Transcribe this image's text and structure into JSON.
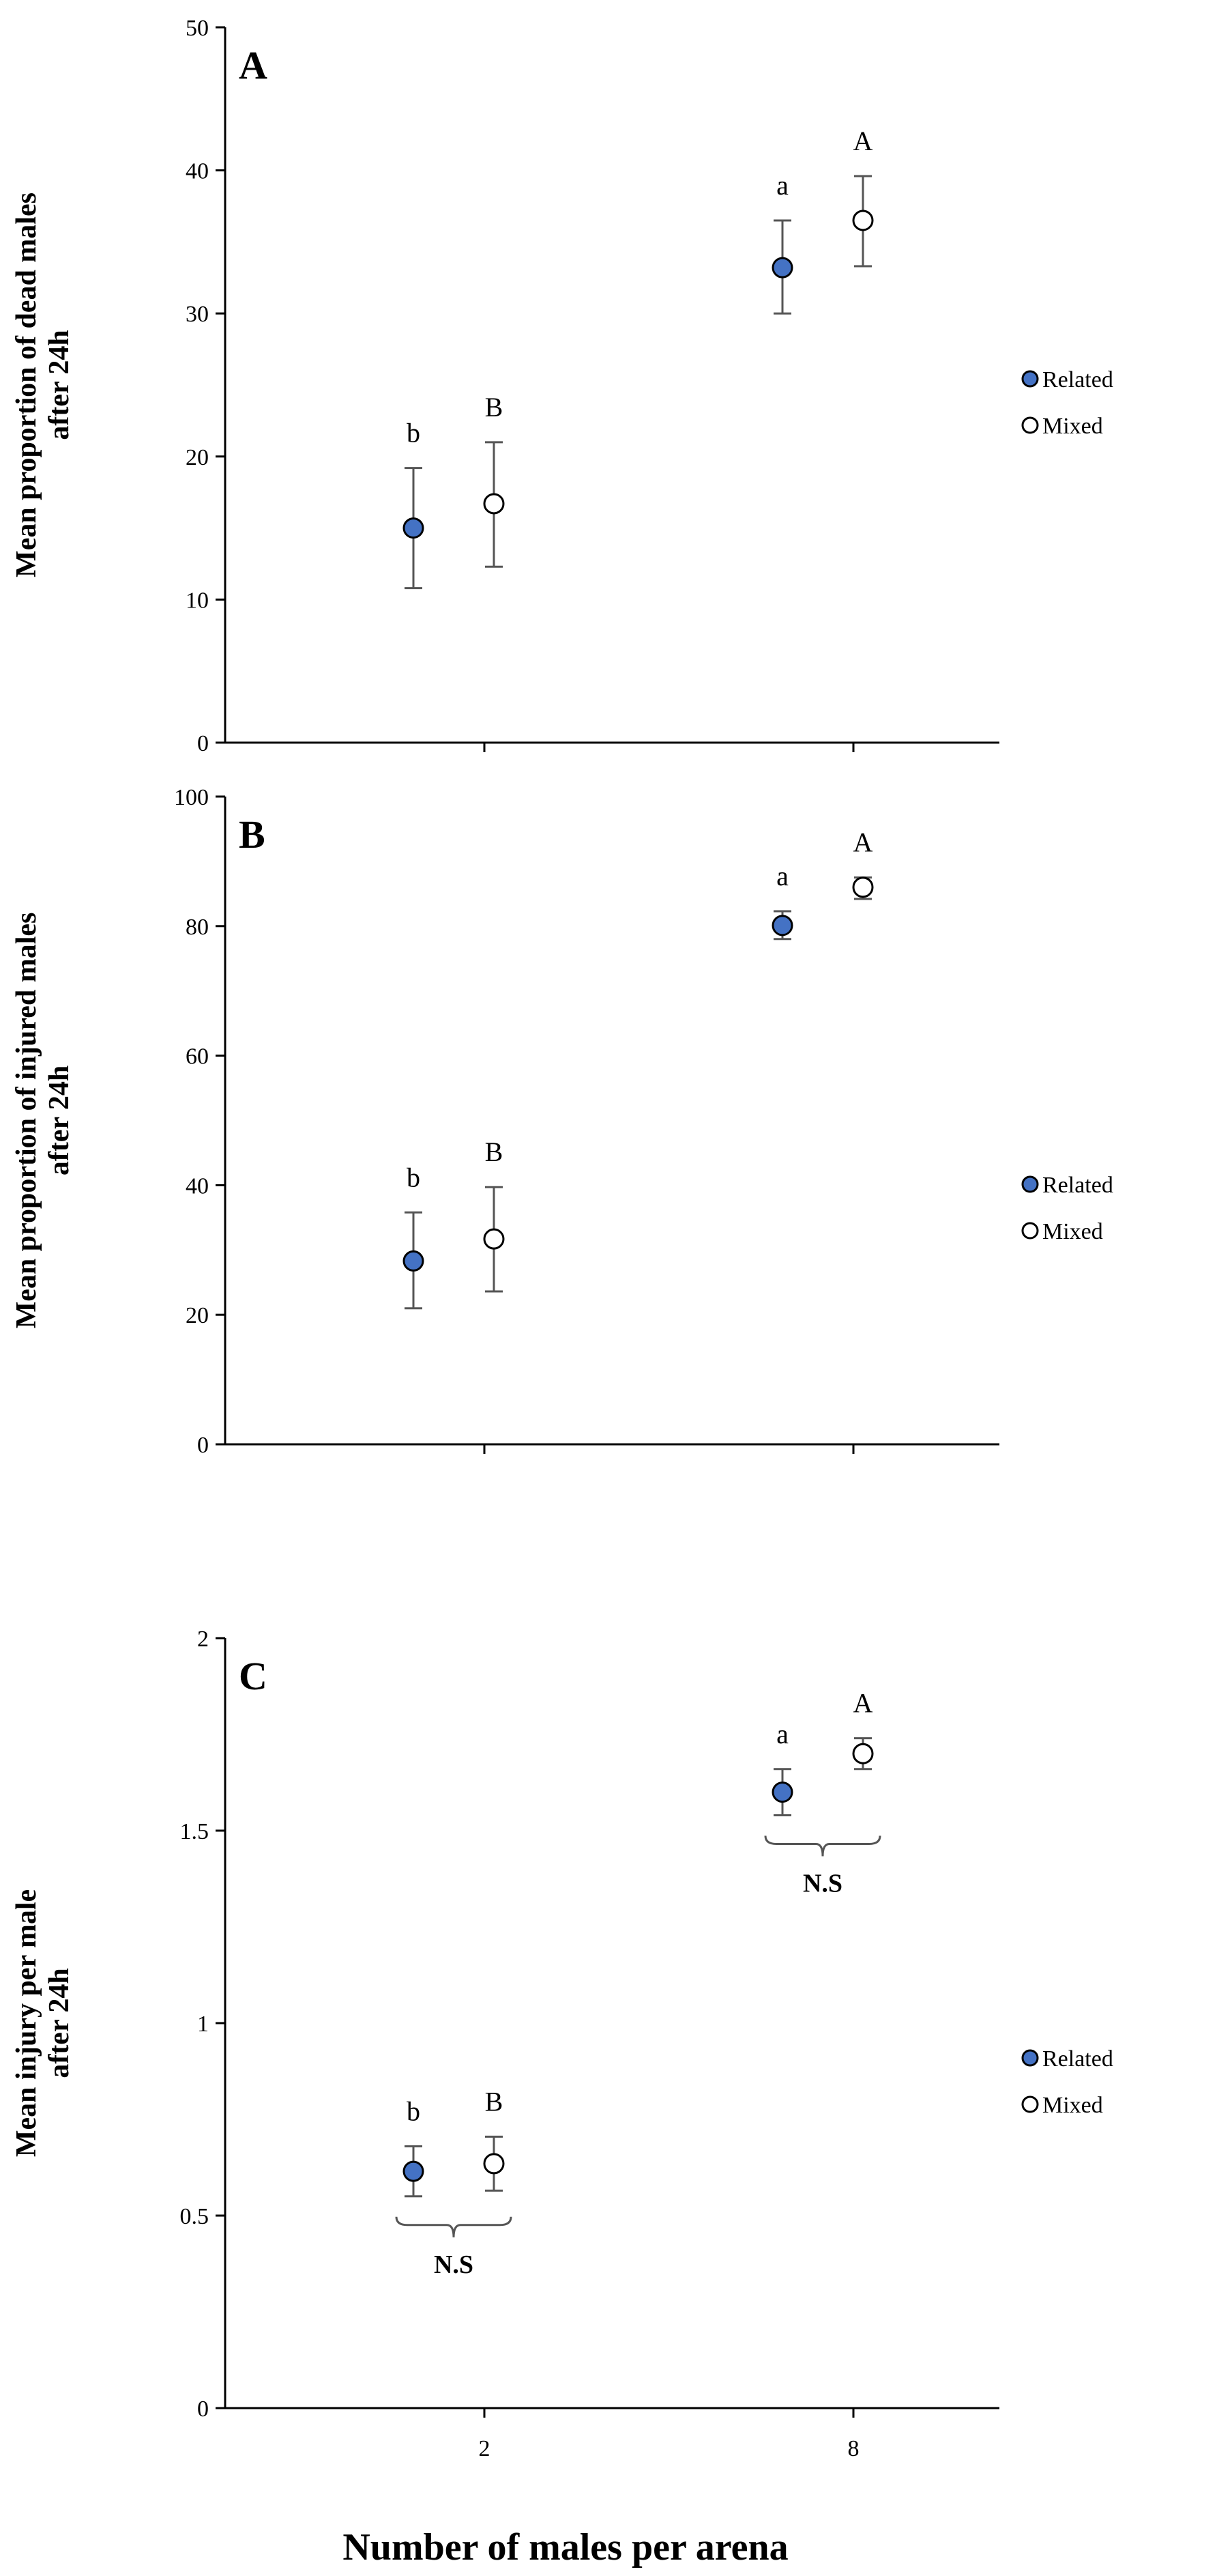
{
  "colors": {
    "related_fill": "#4472C4",
    "mixed_fill": "#ffffff",
    "stroke": "#000000",
    "axis": "#000000",
    "errorbar": "#555555"
  },
  "chart_data": [
    {
      "type": "scatter",
      "panel_label": "A",
      "ylabel_lines": [
        "Mean proportion of dead males",
        "after 24h"
      ],
      "ylim": [
        0,
        50
      ],
      "yticks": [
        0,
        10,
        20,
        30,
        40,
        50
      ],
      "ytick_labels": [
        "0",
        "10",
        "20",
        "30",
        "40",
        "50"
      ],
      "categories": [
        "2",
        "8"
      ],
      "show_xtick_labels": false,
      "series": [
        {
          "name": "Related",
          "values": [
            15,
            33.2
          ],
          "err_low": [
            10.8,
            30
          ],
          "err_high": [
            19.2,
            36.5
          ],
          "sig": [
            "b",
            "a"
          ]
        },
        {
          "name": "Mixed",
          "values": [
            16.7,
            36.5
          ],
          "err_low": [
            12.3,
            33.3
          ],
          "err_high": [
            21.0,
            39.6
          ],
          "sig": [
            "B",
            "A"
          ]
        }
      ],
      "legend": [
        "Related",
        "Mixed"
      ],
      "ns_annotations": []
    },
    {
      "type": "scatter",
      "panel_label": "B",
      "ylabel_lines": [
        "Mean proportion of injured males",
        "after 24h"
      ],
      "ylim": [
        0,
        100
      ],
      "yticks": [
        0,
        20,
        40,
        60,
        80,
        100
      ],
      "ytick_labels": [
        "0",
        "20",
        "40",
        "60",
        "80",
        "100"
      ],
      "categories": [
        "2",
        "8"
      ],
      "show_xtick_labels": false,
      "series": [
        {
          "name": "Related",
          "values": [
            28.3,
            80.1
          ],
          "err_low": [
            21.0,
            78.0
          ],
          "err_high": [
            35.8,
            82.3
          ],
          "sig": [
            "b",
            "a"
          ]
        },
        {
          "name": "Mixed",
          "values": [
            31.7,
            86.0
          ],
          "err_low": [
            23.6,
            84.2
          ],
          "err_high": [
            39.7,
            87.5
          ],
          "sig": [
            "B",
            "A"
          ]
        }
      ],
      "legend": [
        "Related",
        "Mixed"
      ],
      "ns_annotations": []
    },
    {
      "type": "scatter",
      "panel_label": "C",
      "ylabel_lines": [
        "Mean injury per male",
        "after 24h"
      ],
      "ylim": [
        0,
        2
      ],
      "yticks": [
        0,
        0.5,
        1,
        1.5,
        2
      ],
      "ytick_labels": [
        "0",
        "0.5",
        "1",
        "1.5",
        "2"
      ],
      "categories": [
        "2",
        "8"
      ],
      "show_xtick_labels": true,
      "series": [
        {
          "name": "Related",
          "values": [
            0.615,
            1.6
          ],
          "err_low": [
            0.55,
            1.54
          ],
          "err_high": [
            0.68,
            1.66
          ],
          "sig": [
            "b",
            "a"
          ]
        },
        {
          "name": "Mixed",
          "values": [
            0.635,
            1.7
          ],
          "err_low": [
            0.565,
            1.66
          ],
          "err_high": [
            0.705,
            1.74
          ],
          "sig": [
            "B",
            "A"
          ]
        }
      ],
      "legend": [
        "Related",
        "Mixed"
      ],
      "ns_annotations": [
        {
          "category": "2",
          "label": "N.S",
          "position": "below"
        },
        {
          "category": "8",
          "label": "N.S",
          "position": "below"
        }
      ]
    }
  ],
  "xlabel": "Number of males per arena"
}
